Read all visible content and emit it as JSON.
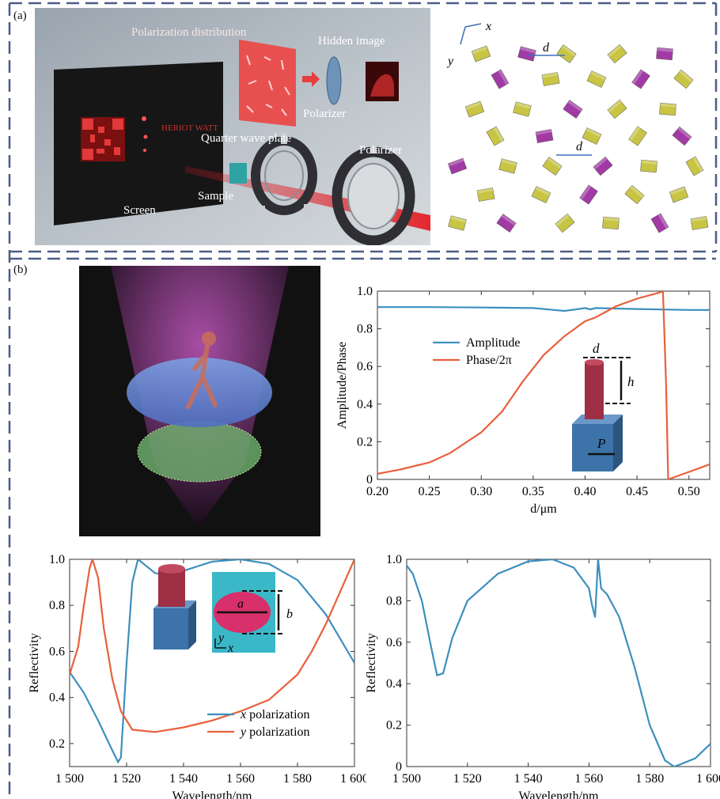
{
  "panel_a": {
    "label": "(a)",
    "setup_labels": {
      "polarization_distribution": "Polarization distribution",
      "hidden_image": "Hidden image",
      "polarizer_top": "Polarizer",
      "quarter_wave_plate": "Quarter wave plate",
      "polarizer_right": "Polarizer",
      "sample": "Sample",
      "screen": "Screen",
      "logo_text": "HERIOT WATT"
    },
    "array_labels": {
      "axis_x": "x",
      "axis_y": "y",
      "spacing_top": "d",
      "spacing_mid": "d"
    },
    "colors": {
      "olive": "#c8c545",
      "purple": "#a23aa5",
      "laser": "#e21f26"
    }
  },
  "panel_b": {
    "label": "(b)"
  },
  "colors": {
    "blue": "#3d8fbd",
    "orange": "#e8603c"
  },
  "chart_data": [
    {
      "type": "line",
      "xlabel": "d/μm",
      "ylabel": "Amplitude/Phase",
      "xlim": [
        0.2,
        0.52
      ],
      "ylim": [
        0,
        1.0
      ],
      "xticks": [
        "0.20",
        "0.25",
        "0.30",
        "0.35",
        "0.40",
        "0.45",
        "0.50"
      ],
      "yticks": [
        "0",
        "0.2",
        "0.4",
        "0.6",
        "0.8",
        "1.0"
      ],
      "legend_position": "center-left",
      "inset_labels": {
        "d": "d",
        "h": "h",
        "P": "P"
      },
      "series": [
        {
          "name": "Amplitude",
          "color": "#3d8fbd",
          "x": [
            0.2,
            0.25,
            0.3,
            0.35,
            0.37,
            0.38,
            0.39,
            0.4,
            0.405,
            0.41,
            0.45,
            0.5,
            0.52
          ],
          "y": [
            0.915,
            0.915,
            0.913,
            0.91,
            0.9,
            0.895,
            0.902,
            0.91,
            0.903,
            0.91,
            0.905,
            0.9,
            0.9
          ]
        },
        {
          "name": "Phase/2π",
          "color": "#e8603c",
          "x": [
            0.2,
            0.22,
            0.25,
            0.27,
            0.3,
            0.32,
            0.34,
            0.36,
            0.38,
            0.39,
            0.395,
            0.4,
            0.41,
            0.43,
            0.45,
            0.47,
            0.475,
            0.478,
            0.48,
            0.5,
            0.52
          ],
          "y": [
            0.03,
            0.05,
            0.09,
            0.14,
            0.25,
            0.36,
            0.52,
            0.66,
            0.76,
            0.8,
            0.82,
            0.84,
            0.86,
            0.92,
            0.96,
            0.99,
            1.0,
            0.5,
            0.0,
            0.04,
            0.08
          ]
        }
      ]
    },
    {
      "type": "line",
      "xlabel": "Wavelength/nm",
      "ylabel": "Reflectivity",
      "xlim": [
        1500,
        1600
      ],
      "ylim": [
        0.1,
        1.0
      ],
      "xticks": [
        "1 500",
        "1 520",
        "1 540",
        "1 560",
        "1 580",
        "1 600"
      ],
      "yticks": [
        "0.2",
        "0.4",
        "0.6",
        "0.8",
        "1.0"
      ],
      "legend_position": "bottom-right",
      "inset_labels": {
        "a": "a",
        "b": "b",
        "x": "x",
        "y": "y"
      },
      "series": [
        {
          "name": "x polarization",
          "color": "#3d8fbd",
          "x": [
            1500,
            1505,
            1510,
            1515,
            1517,
            1518,
            1520,
            1522,
            1524,
            1526,
            1530,
            1535,
            1540,
            1550,
            1560,
            1570,
            1580,
            1590,
            1600
          ],
          "y": [
            0.51,
            0.42,
            0.3,
            0.17,
            0.12,
            0.14,
            0.55,
            0.9,
            1.0,
            0.98,
            0.94,
            0.93,
            0.95,
            0.99,
            1.0,
            0.98,
            0.91,
            0.76,
            0.55
          ]
        },
        {
          "name": "y polarization",
          "color": "#e8603c",
          "x": [
            1500,
            1503,
            1505,
            1507,
            1508,
            1510,
            1512,
            1515,
            1518,
            1522,
            1530,
            1540,
            1550,
            1560,
            1570,
            1580,
            1585,
            1590,
            1595,
            1600
          ],
          "y": [
            0.5,
            0.62,
            0.8,
            0.96,
            1.0,
            0.92,
            0.7,
            0.48,
            0.34,
            0.26,
            0.25,
            0.27,
            0.3,
            0.34,
            0.39,
            0.5,
            0.6,
            0.72,
            0.86,
            1.0
          ]
        }
      ]
    },
    {
      "type": "line",
      "xlabel": "Wavelength/nm",
      "ylabel": "Reflectivity",
      "xlim": [
        1500,
        1600
      ],
      "ylim": [
        0,
        1.0
      ],
      "xticks": [
        "1 500",
        "1 520",
        "1 540",
        "1 560",
        "1 580",
        "1 600"
      ],
      "yticks": [
        "0",
        "0.2",
        "0.4",
        "0.6",
        "0.8",
        "1.0"
      ],
      "series": [
        {
          "color": "#3d8fbd",
          "x": [
            1500,
            1502,
            1505,
            1508,
            1510,
            1512,
            1515,
            1520,
            1530,
            1540,
            1548,
            1555,
            1560,
            1561,
            1562,
            1563,
            1564,
            1566,
            1570,
            1575,
            1580,
            1585,
            1588,
            1590,
            1595,
            1600
          ],
          "y": [
            0.97,
            0.93,
            0.8,
            0.58,
            0.44,
            0.45,
            0.62,
            0.8,
            0.93,
            0.99,
            1.0,
            0.96,
            0.86,
            0.78,
            0.72,
            1.0,
            0.86,
            0.83,
            0.72,
            0.48,
            0.2,
            0.03,
            0.0,
            0.01,
            0.04,
            0.11
          ]
        }
      ]
    }
  ]
}
